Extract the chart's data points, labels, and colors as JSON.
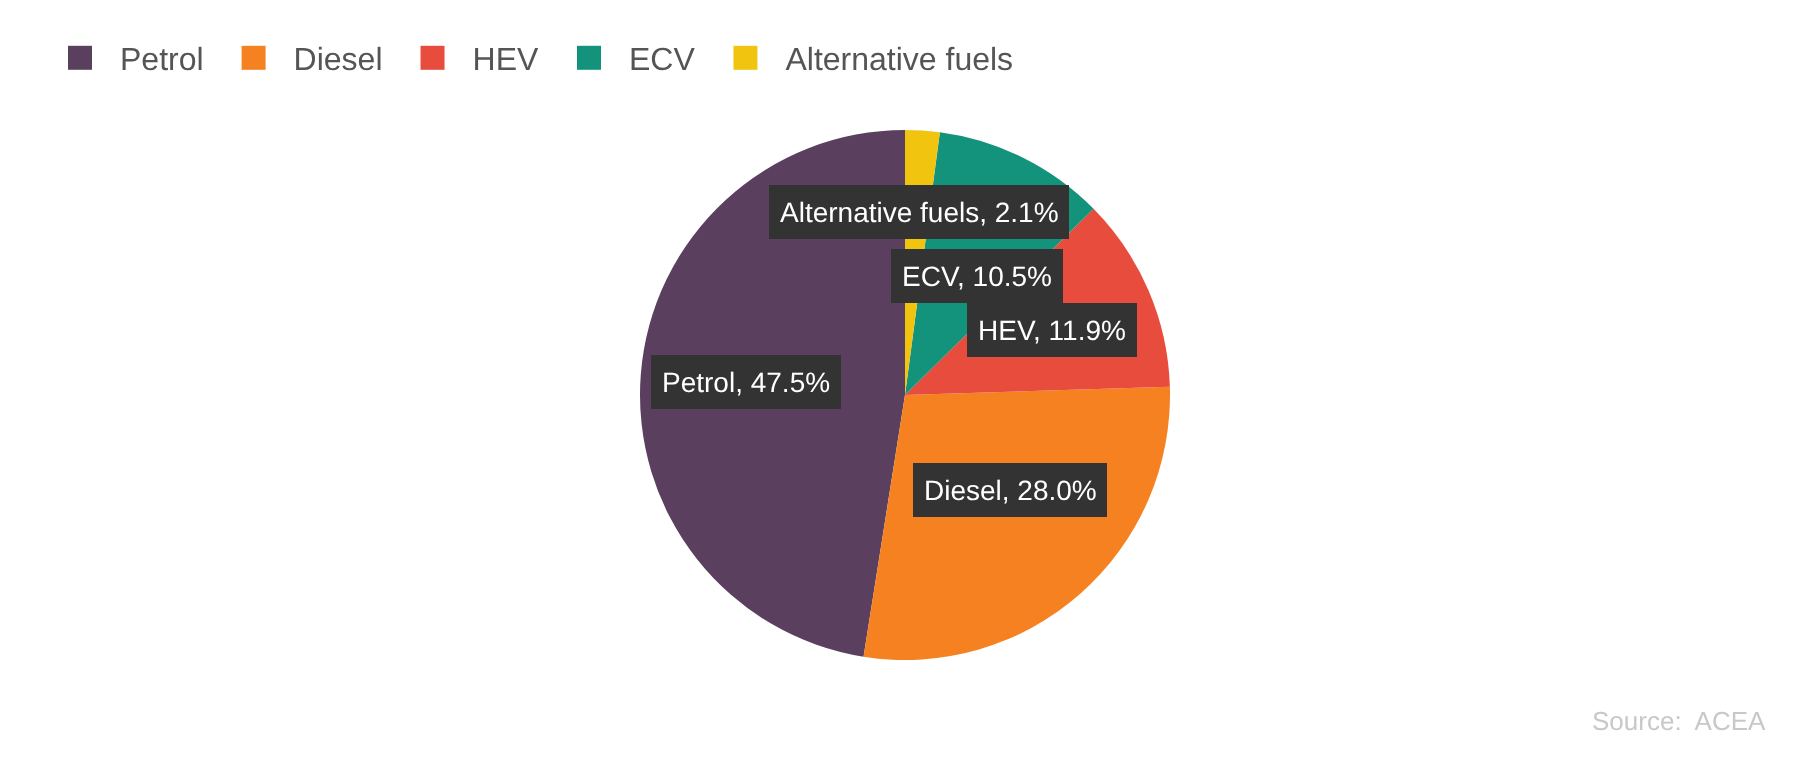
{
  "chart_data": {
    "type": "pie",
    "categories": [
      "Petrol",
      "Diesel",
      "HEV",
      "ECV",
      "Alternative fuels"
    ],
    "values": [
      47.5,
      28.0,
      11.9,
      10.5,
      2.1
    ],
    "colors": [
      "#5b3f5f",
      "#f68121",
      "#e84c3d",
      "#13927c",
      "#f1c40f"
    ],
    "value_labels": [
      "Petrol, 47.5%",
      "Diesel, 28.0%",
      "HEV, 11.9%",
      "ECV, 10.5%",
      "Alternative fuels, 2.1%"
    ],
    "legend": "top left",
    "annotations": [
      "Source:  ACEA"
    ]
  }
}
